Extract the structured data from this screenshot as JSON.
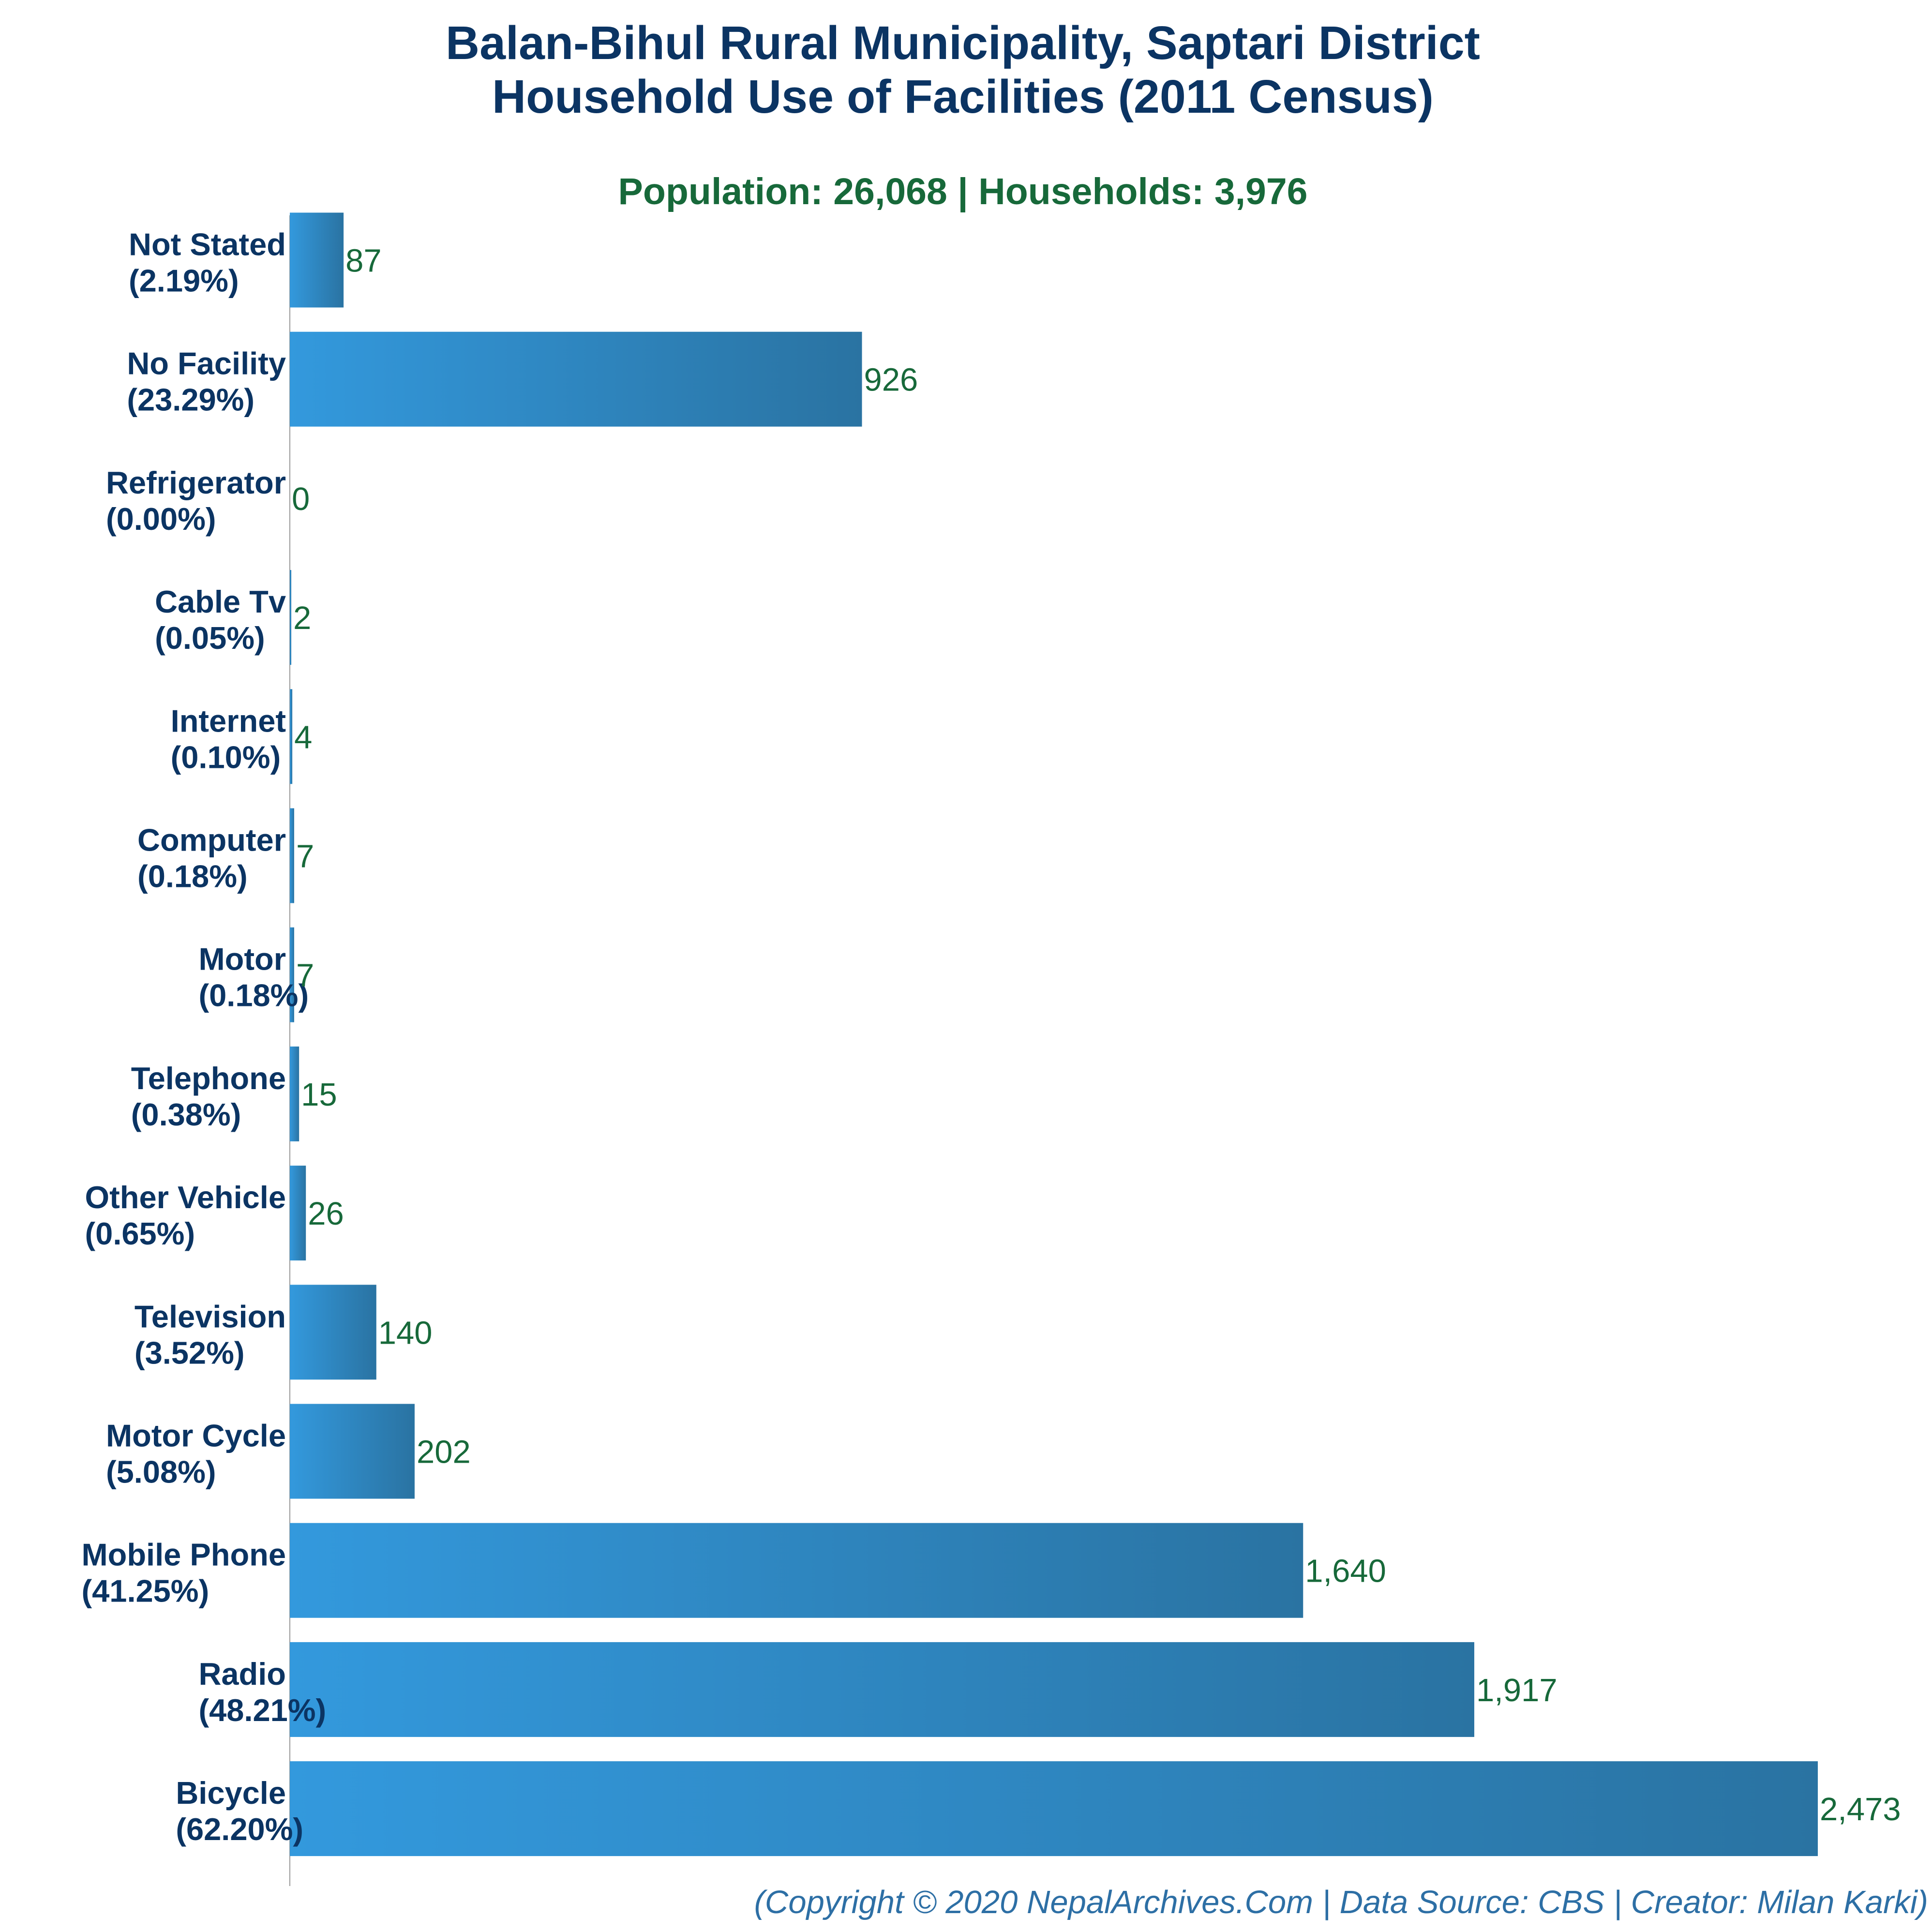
{
  "colors": {
    "title": "#0b3463",
    "subtitle": "#17693a",
    "value_label": "#17693a",
    "category_label": "#0b3463",
    "footer": "#2d6fa5",
    "bar_gradient_start": "#3399dd",
    "bar_gradient_end": "#2a73a2",
    "axis_line": "#9a9a9a"
  },
  "chart_data": {
    "type": "bar",
    "orientation": "horizontal",
    "title": "Balan-Bihul Rural Municipality, Saptari District",
    "title_line2": "Household Use of Facilities (2011 Census)",
    "subtitle": "Population: 26,068 | Households: 3,976",
    "footer": "(Copyright © 2020 NepalArchives.Com | Data Source: CBS | Creator: Milan Karki)",
    "categories": [
      "Not Stated",
      "No Facility",
      "Refrigerator",
      "Cable Tv",
      "Internet",
      "Computer",
      "Motor",
      "Telephone",
      "Other Vehicle",
      "Television",
      "Motor Cycle",
      "Mobile Phone",
      "Radio",
      "Bicycle"
    ],
    "percent_labels": [
      "(2.19%)",
      "(23.29%)",
      "(0.00%)",
      "(0.05%)",
      "(0.10%)",
      "(0.18%)",
      "(0.18%)",
      "(0.38%)",
      "(0.65%)",
      "(3.52%)",
      "(5.08%)",
      "(41.25%)",
      "(48.21%)",
      "(62.20%)"
    ],
    "values": [
      87,
      926,
      0,
      2,
      4,
      7,
      7,
      15,
      26,
      140,
      202,
      1640,
      1917,
      2473
    ],
    "value_labels": [
      "87",
      "926",
      "0",
      "2",
      "4",
      "7",
      "7",
      "15",
      "26",
      "140",
      "202",
      "1,640",
      "1,917",
      "2,473"
    ],
    "xlim": [
      0,
      2473
    ],
    "grid": false,
    "legend": "none"
  }
}
